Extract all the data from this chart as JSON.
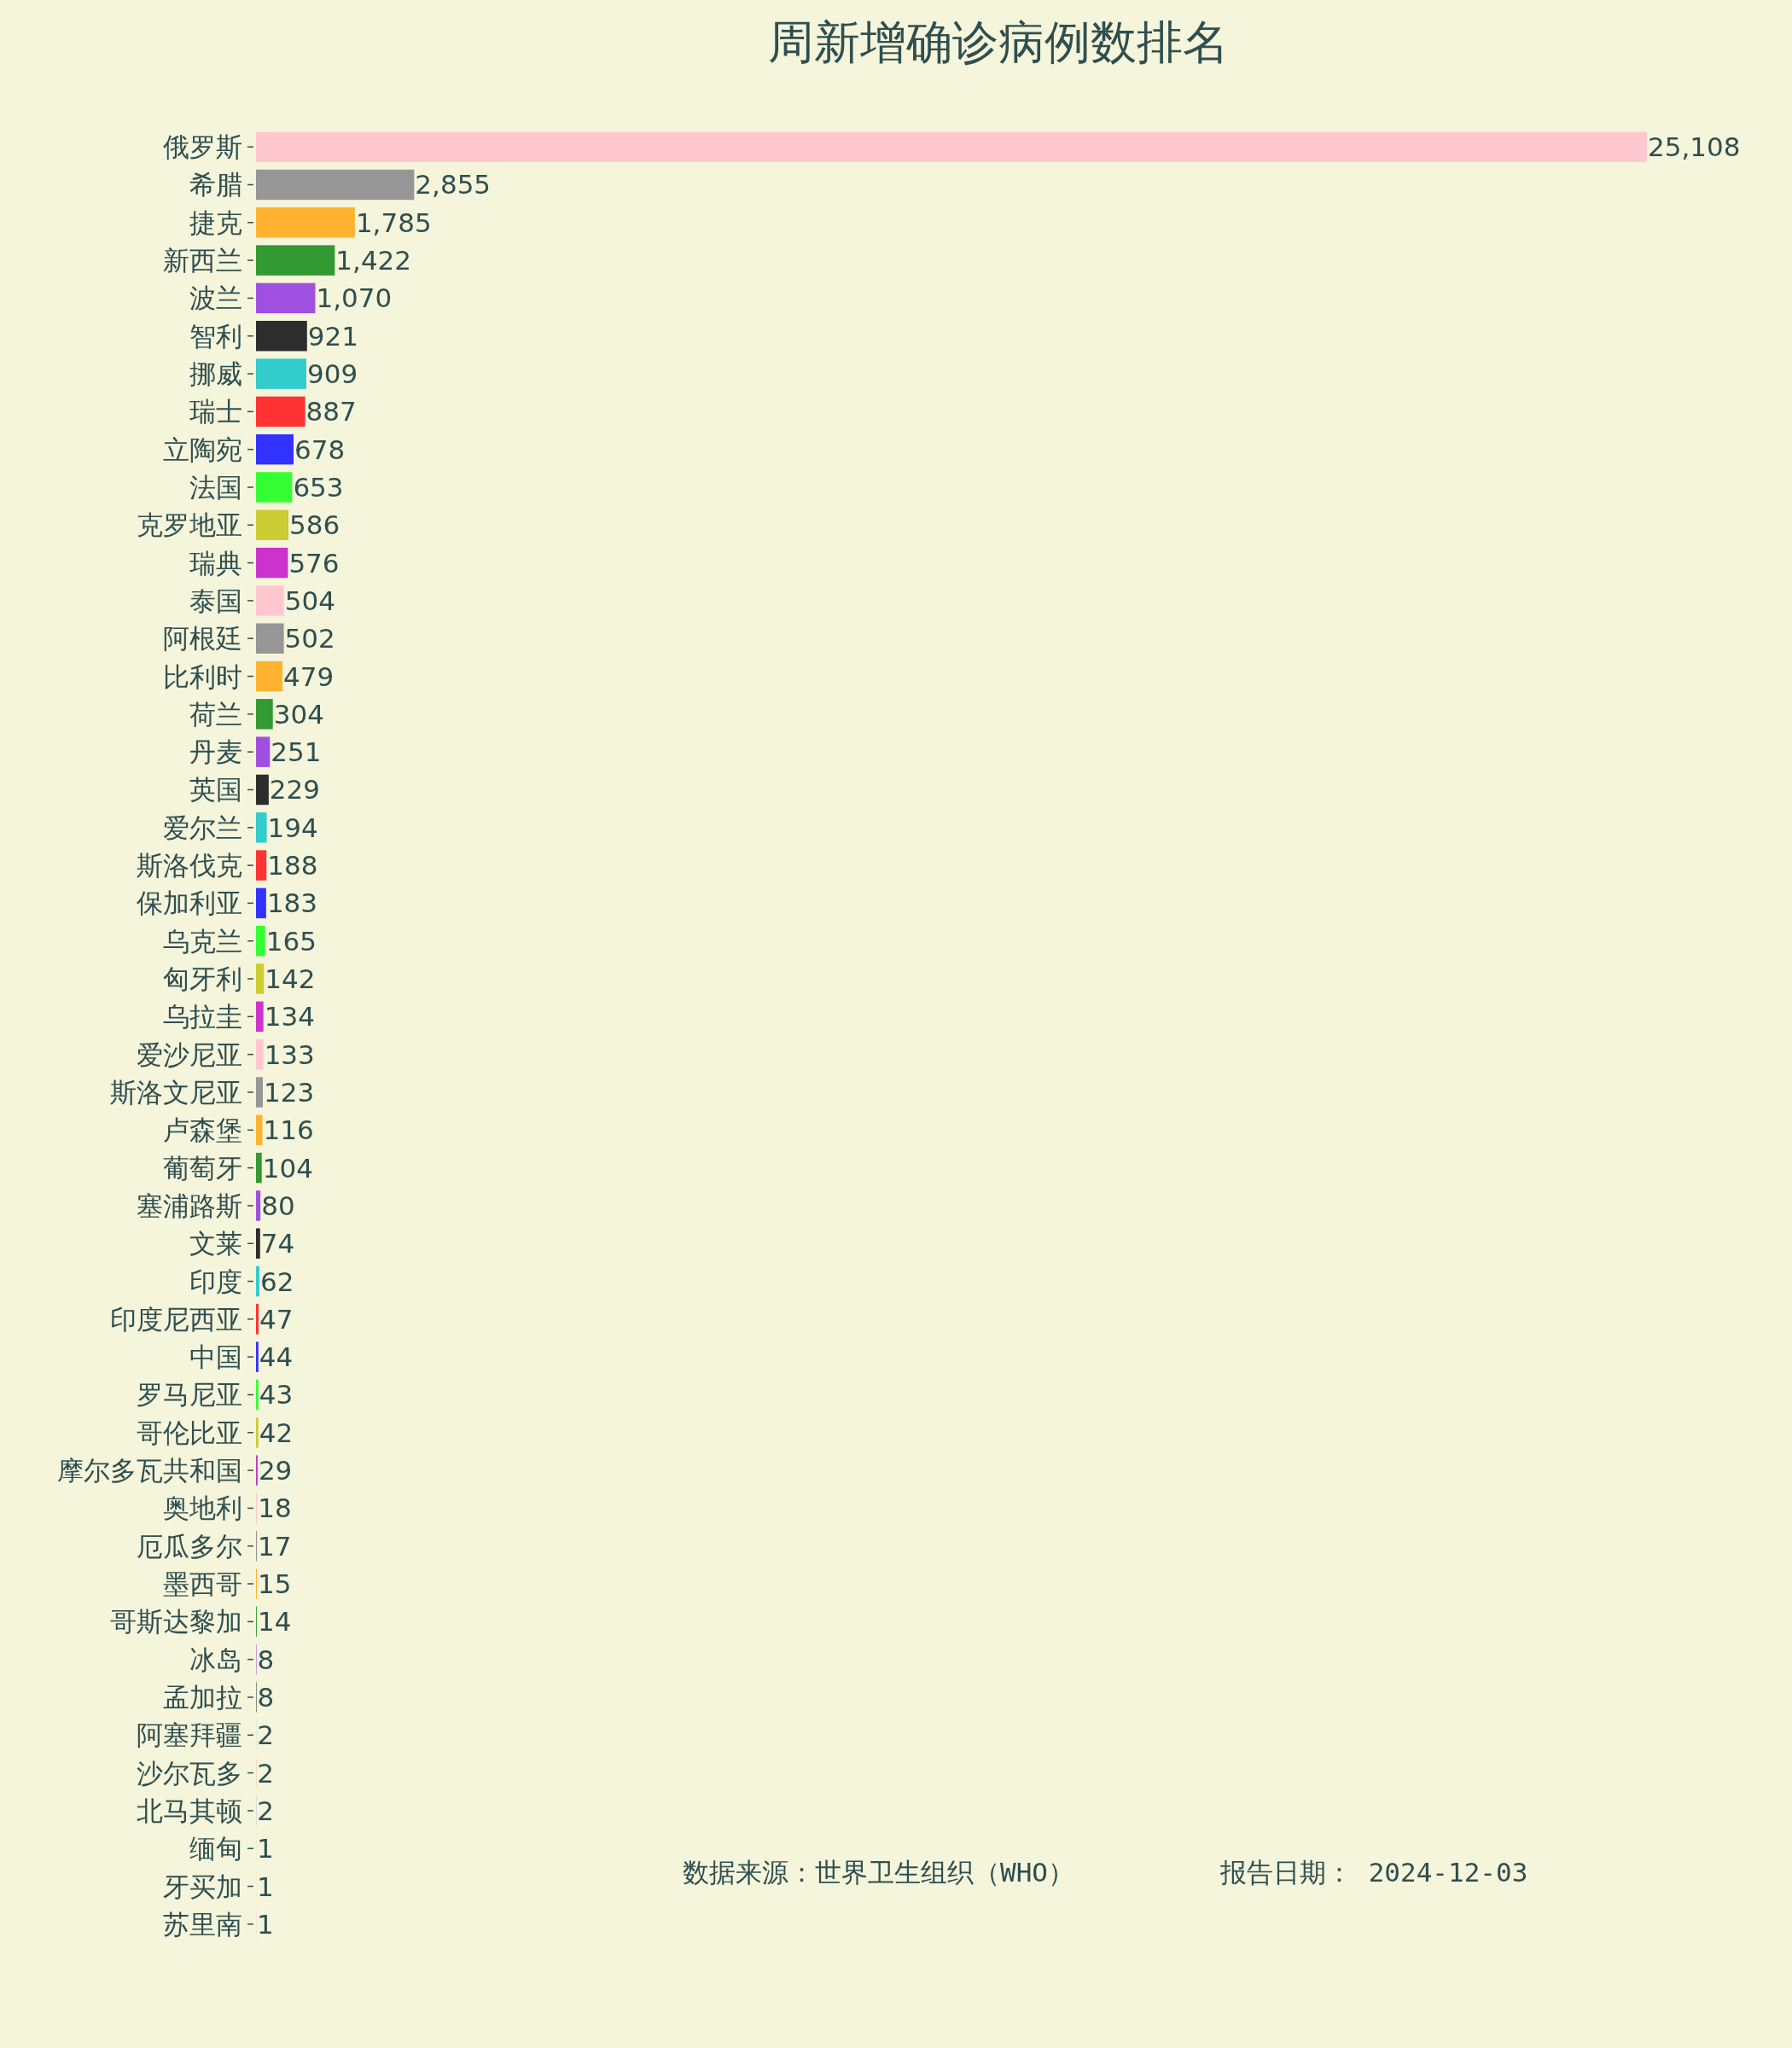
{
  "chart_data": {
    "type": "bar",
    "orientation": "horizontal",
    "title": "周新增确诊病例数排名",
    "categories": [
      "俄罗斯",
      "希腊",
      "捷克",
      "新西兰",
      "波兰",
      "智利",
      "挪威",
      "瑞士",
      "立陶宛",
      "法国",
      "克罗地亚",
      "瑞典",
      "泰国",
      "阿根廷",
      "比利时",
      "荷兰",
      "丹麦",
      "英国",
      "爱尔兰",
      "斯洛伐克",
      "保加利亚",
      "乌克兰",
      "匈牙利",
      "乌拉圭",
      "爱沙尼亚",
      "斯洛文尼亚",
      "卢森堡",
      "葡萄牙",
      "塞浦路斯",
      "文莱",
      "印度",
      "印度尼西亚",
      "中国",
      "罗马尼亚",
      "哥伦比亚",
      "摩尔多瓦共和国",
      "奥地利",
      "厄瓜多尔",
      "墨西哥",
      "哥斯达黎加",
      "冰岛",
      "孟加拉",
      "阿塞拜疆",
      "沙尔瓦多",
      "北马其顿",
      "缅甸",
      "牙买加",
      "苏里南"
    ],
    "values": [
      25108,
      2855,
      1785,
      1422,
      1070,
      921,
      909,
      887,
      678,
      653,
      586,
      576,
      504,
      502,
      479,
      304,
      251,
      229,
      194,
      188,
      183,
      165,
      142,
      134,
      133,
      123,
      116,
      104,
      80,
      74,
      62,
      47,
      44,
      43,
      42,
      29,
      18,
      17,
      15,
      14,
      8,
      8,
      2,
      2,
      2,
      1,
      1,
      1
    ],
    "value_labels": [
      "25,108",
      "2,855",
      "1,785",
      "1,422",
      "1,070",
      "921",
      "909",
      "887",
      "678",
      "653",
      "586",
      "576",
      "504",
      "502",
      "479",
      "304",
      "251",
      "229",
      "194",
      "188",
      "183",
      "165",
      "142",
      "134",
      "133",
      "123",
      "116",
      "104",
      "80",
      "74",
      "62",
      "47",
      "44",
      "43",
      "42",
      "29",
      "18",
      "17",
      "15",
      "14",
      "8",
      "8",
      "2",
      "2",
      "2",
      "1",
      "1",
      "1"
    ],
    "colors": [
      "#ffc8d0",
      "#969696",
      "#ffb330",
      "#339933",
      "#a050e0",
      "#2d2d2d",
      "#33cccc",
      "#ff3333",
      "#3333ff",
      "#33ff33",
      "#cccc33",
      "#cc33cc",
      "#ffc8d0",
      "#969696",
      "#ffb330",
      "#339933",
      "#a050e0",
      "#2d2d2d",
      "#33cccc",
      "#ff3333",
      "#3333ff",
      "#33ff33",
      "#cccc33",
      "#cc33cc",
      "#ffc8d0",
      "#969696",
      "#ffb330",
      "#339933",
      "#a050e0",
      "#2d2d2d",
      "#33cccc",
      "#ff3333",
      "#3333ff",
      "#33ff33",
      "#cccc33",
      "#cc33cc",
      "#ffc8d0",
      "#969696",
      "#ffb330",
      "#339933",
      "#a050e0",
      "#2d2d2d",
      "#33cccc",
      "#ff3333",
      "#3333ff",
      "#33ff33",
      "#cccc33",
      "#cc33cc"
    ],
    "annotations": [
      "数据来源：世界卫生组织（WHO）",
      "报告日期： 2024-12-03"
    ]
  }
}
